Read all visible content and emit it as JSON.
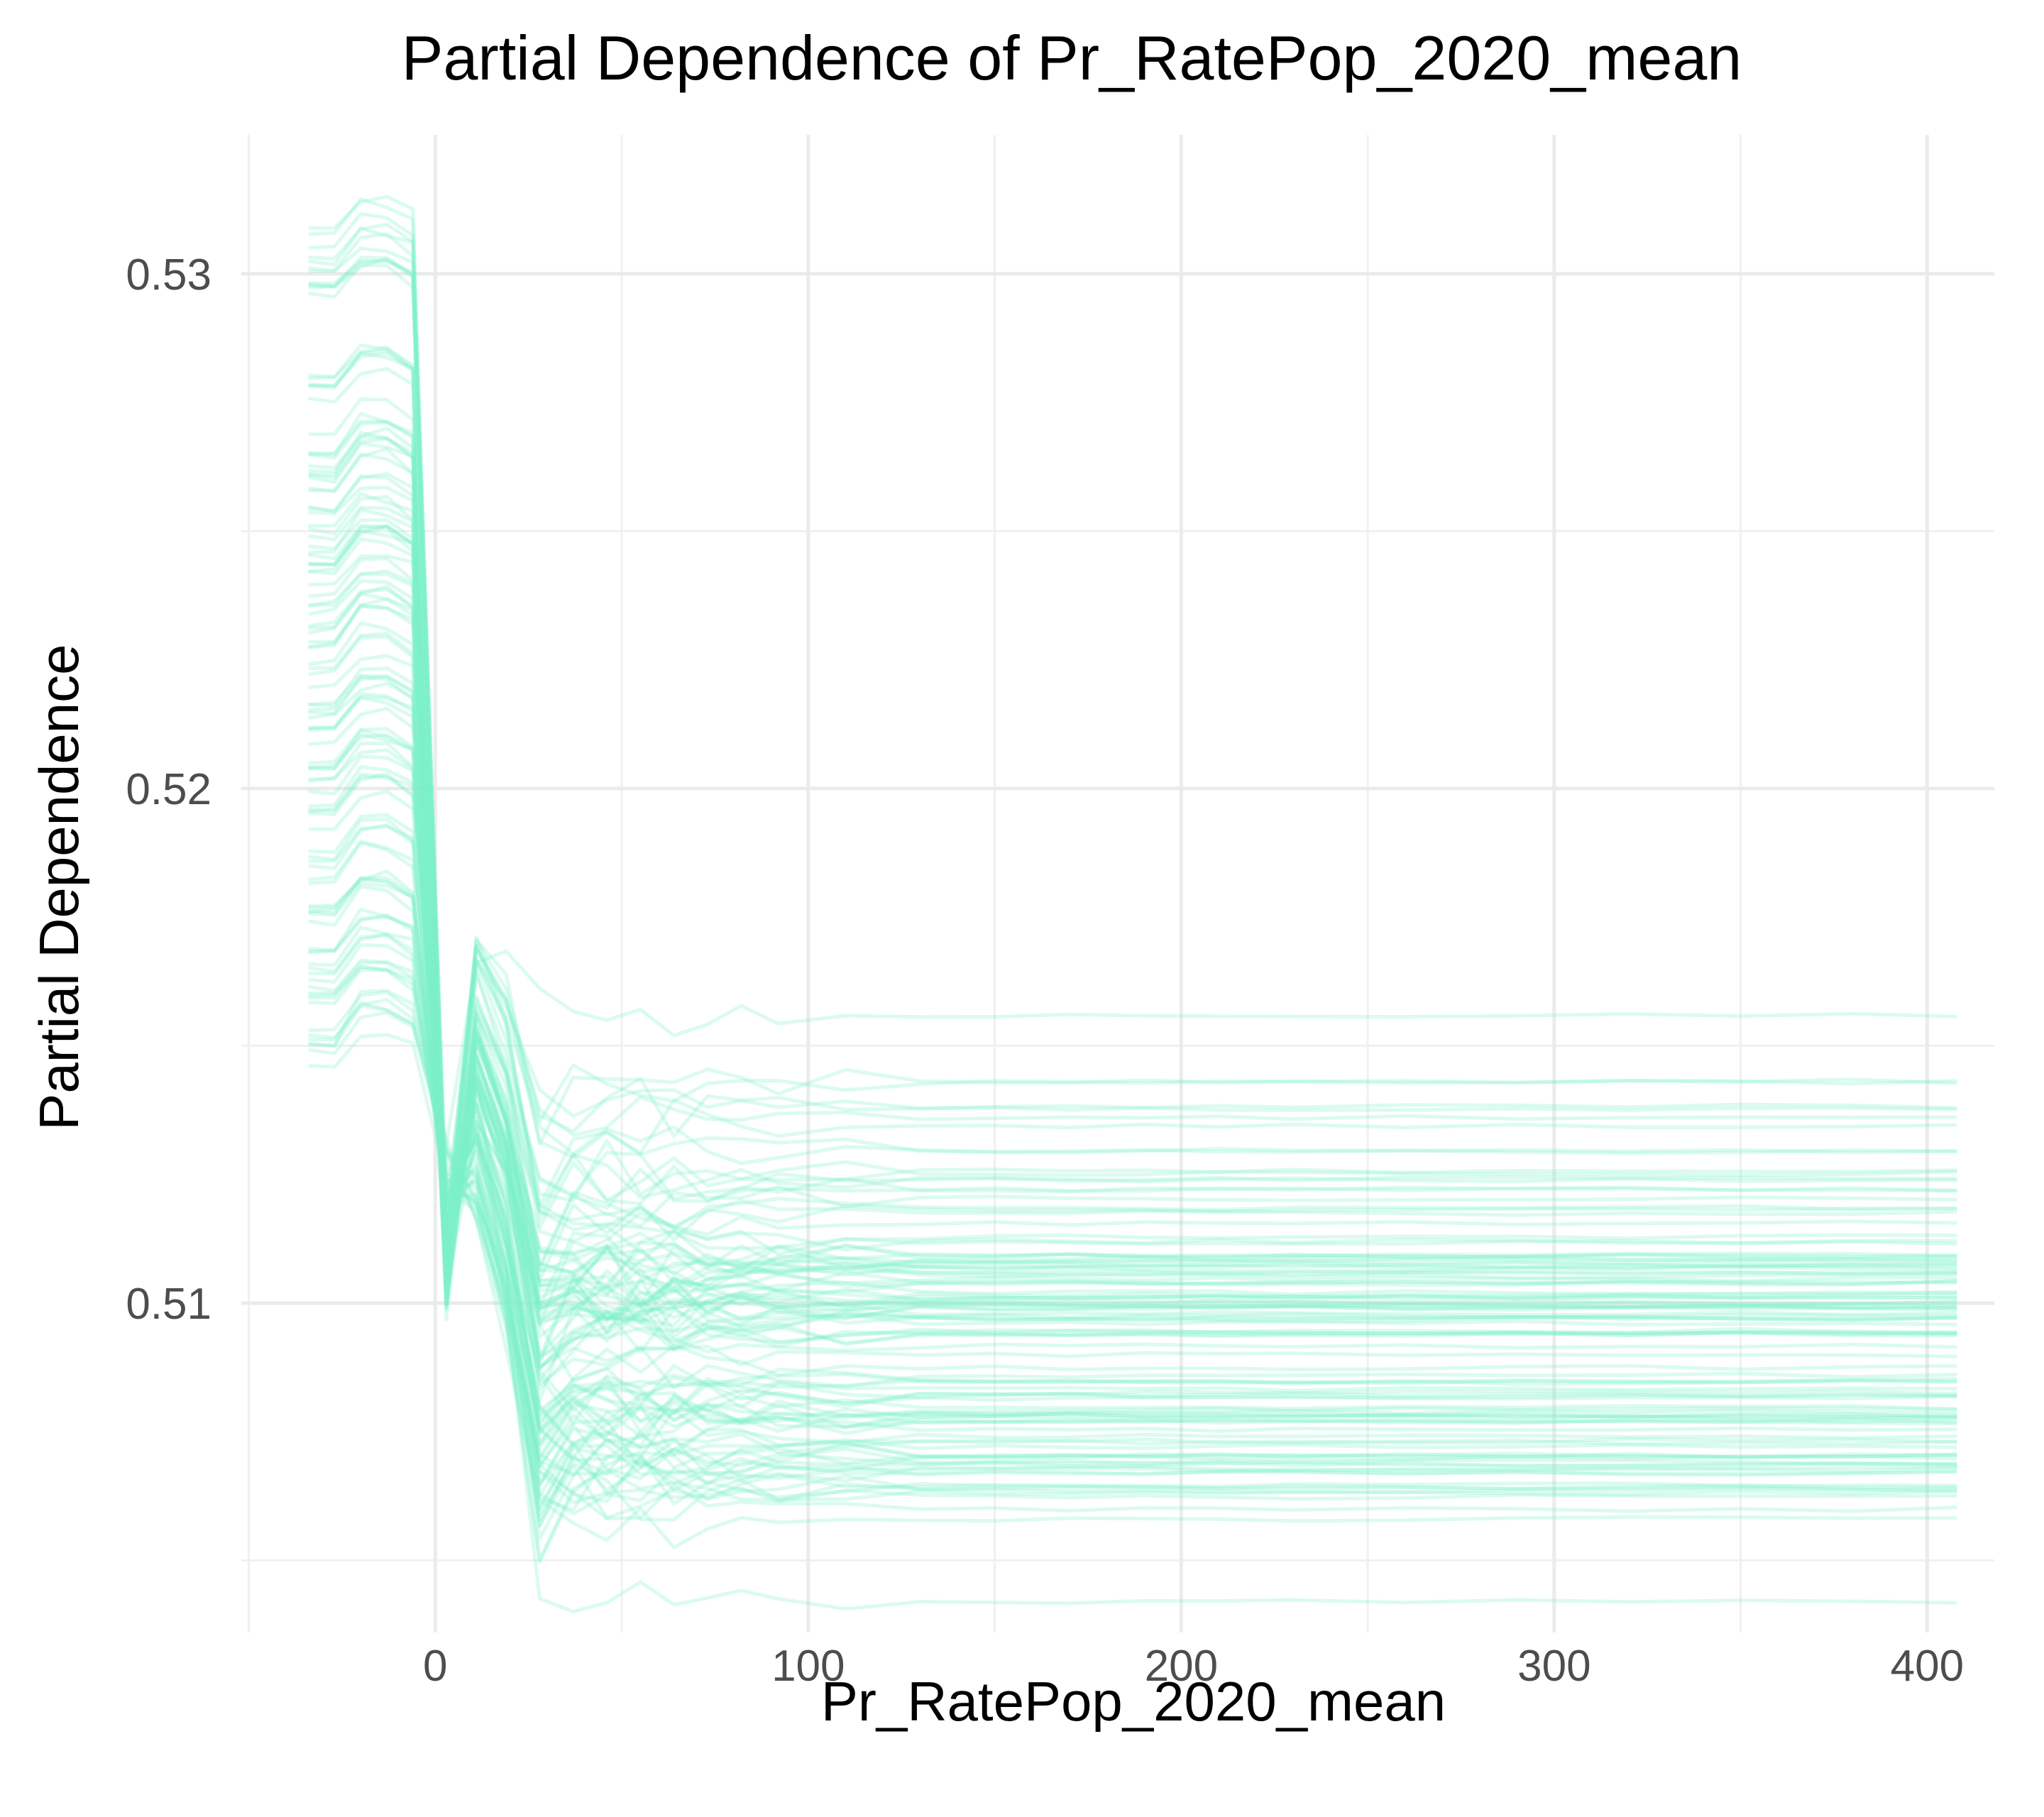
{
  "chart_data": {
    "type": "line",
    "title": "Partial Dependence of Pr_RatePop_2020_mean",
    "xlabel": "Pr_RatePop_2020_mean",
    "ylabel": "Partial Dependence",
    "xlim": [
      -52,
      418
    ],
    "ylim": [
      0.5036,
      0.5327
    ],
    "x_ticks": [
      0,
      100,
      200,
      300,
      400
    ],
    "x_tick_labels": [
      "0",
      "100",
      "200",
      "300",
      "400"
    ],
    "y_ticks": [
      0.51,
      0.52,
      0.53
    ],
    "y_tick_labels": [
      "0.51",
      "0.52",
      "0.53"
    ],
    "x_minor_grid": [
      -50,
      50,
      150,
      250,
      350
    ],
    "y_minor_grid": [
      0.505,
      0.515,
      0.525
    ],
    "grid": true,
    "legend": "none",
    "line_color": "#7FEFC8",
    "line_opacity": 0.28,
    "x": [
      -34,
      -27,
      -20,
      -13,
      -6,
      3,
      11,
      19,
      28,
      37,
      46,
      55,
      64,
      73,
      82,
      92,
      110,
      130,
      150,
      170,
      190,
      210,
      230,
      260,
      290,
      320,
      350,
      380,
      408
    ],
    "representative_curves": [
      {
        "start": 0.5305,
        "peak": 0.5311,
        "dip": 0.5117,
        "rebound": 0.517,
        "plateau": 0.5136
      },
      {
        "start": 0.5298,
        "peak": 0.5303,
        "dip": 0.5109,
        "rebound": 0.5168,
        "plateau": 0.5124
      },
      {
        "start": 0.528,
        "peak": 0.5286,
        "dip": 0.5108,
        "rebound": 0.516,
        "plateau": 0.5118
      },
      {
        "start": 0.5265,
        "peak": 0.5272,
        "dip": 0.5105,
        "rebound": 0.5155,
        "plateau": 0.5112
      },
      {
        "start": 0.5258,
        "peak": 0.5265,
        "dip": 0.5104,
        "rebound": 0.5152,
        "plateau": 0.5108
      },
      {
        "start": 0.525,
        "peak": 0.5256,
        "dip": 0.5101,
        "rebound": 0.515,
        "plateau": 0.5104
      },
      {
        "start": 0.5243,
        "peak": 0.525,
        "dip": 0.5106,
        "rebound": 0.5148,
        "plateau": 0.5101
      },
      {
        "start": 0.5236,
        "peak": 0.5242,
        "dip": 0.5102,
        "rebound": 0.5146,
        "plateau": 0.5099
      },
      {
        "start": 0.5228,
        "peak": 0.5235,
        "dip": 0.511,
        "rebound": 0.5144,
        "plateau": 0.5097
      },
      {
        "start": 0.522,
        "peak": 0.5226,
        "dip": 0.5112,
        "rebound": 0.5141,
        "plateau": 0.5094
      },
      {
        "start": 0.5212,
        "peak": 0.5218,
        "dip": 0.5109,
        "rebound": 0.5139,
        "plateau": 0.509
      },
      {
        "start": 0.5204,
        "peak": 0.521,
        "dip": 0.5115,
        "rebound": 0.5136,
        "plateau": 0.5086
      },
      {
        "start": 0.5196,
        "peak": 0.5203,
        "dip": 0.5118,
        "rebound": 0.5133,
        "plateau": 0.5082
      },
      {
        "start": 0.5185,
        "peak": 0.5192,
        "dip": 0.5117,
        "rebound": 0.513,
        "plateau": 0.5077
      },
      {
        "start": 0.5176,
        "peak": 0.5182,
        "dip": 0.512,
        "rebound": 0.5127,
        "plateau": 0.5073
      },
      {
        "start": 0.5168,
        "peak": 0.5175,
        "dip": 0.5122,
        "rebound": 0.5124,
        "plateau": 0.507
      },
      {
        "start": 0.516,
        "peak": 0.5166,
        "dip": 0.5125,
        "rebound": 0.512,
        "plateau": 0.5067
      },
      {
        "start": 0.515,
        "peak": 0.5157,
        "dip": 0.5128,
        "rebound": 0.5118,
        "plateau": 0.5064
      },
      {
        "start": 0.515,
        "peak": 0.5161,
        "dip": 0.5132,
        "rebound": 0.5172,
        "plateau": 0.5156
      },
      {
        "start": 0.5245,
        "peak": 0.5251,
        "dip": 0.5113,
        "rebound": 0.515,
        "plateau": 0.5042
      }
    ]
  }
}
